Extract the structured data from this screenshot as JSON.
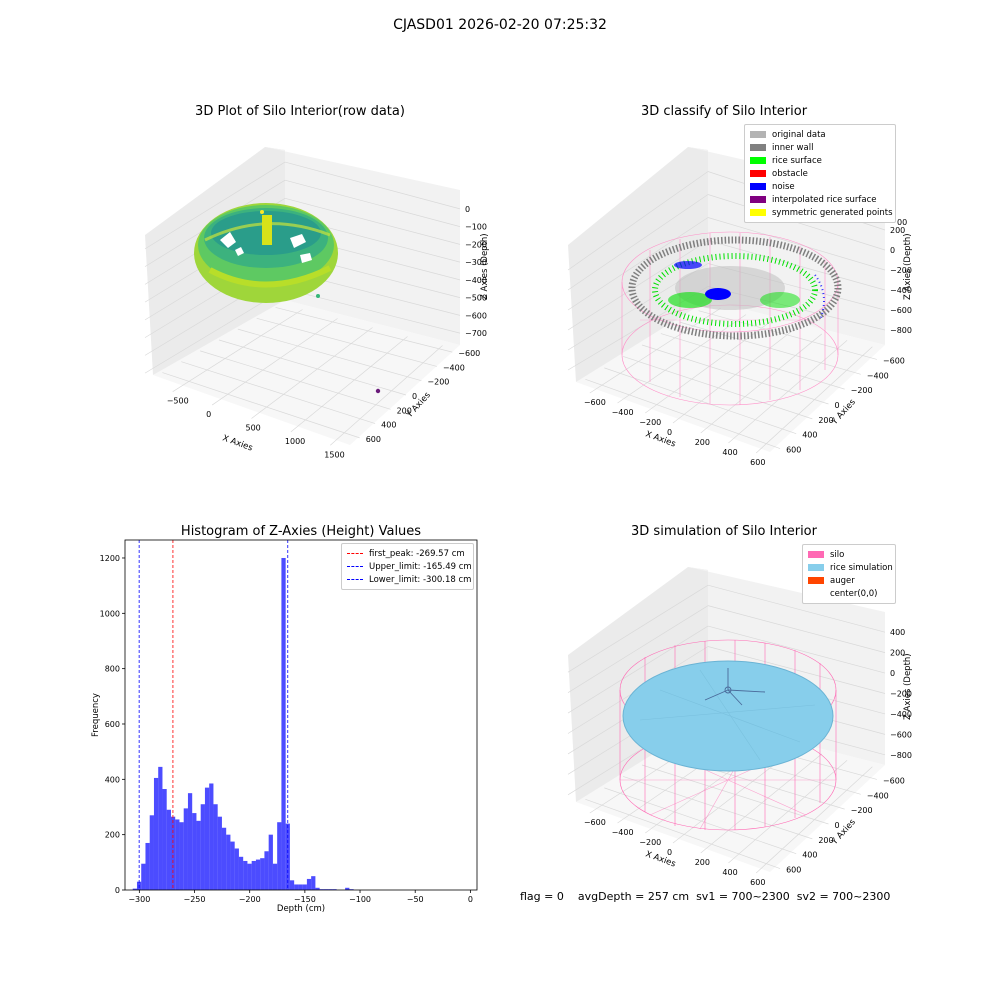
{
  "suptitle": "CJASD01 2026-02-20 07:25:32",
  "status_line": {
    "flag": "flag = 0",
    "avg_depth": "avgDepth = 257 cm",
    "sv1": "sv1 = 700~2300",
    "sv2": "sv2 = 700~2300"
  },
  "chart_data": [
    {
      "type": "scatter",
      "title": "3D Plot of Silo Interior(row data)",
      "xlabel": "X Axies",
      "ylabel": "Y Axies",
      "zlabel": "Z Axies (Depth)",
      "x_ticks": [
        "−500",
        "0",
        "500",
        "1000",
        "1500"
      ],
      "y_ticks": [
        "600",
        "400",
        "200",
        "0",
        "−200",
        "−400",
        "−600"
      ],
      "z_ticks": [
        "0",
        "−100",
        "−200",
        "−300",
        "−400",
        "−500",
        "−600",
        "−700"
      ],
      "colormap": "viridis",
      "grid": true
    },
    {
      "type": "scatter",
      "title": "3D classify of Silo Interior",
      "xlabel": "X Axies",
      "ylabel": "Y Axies",
      "zlabel": "Z Axies (Depth)",
      "x_ticks": [
        "−600",
        "−400",
        "−200",
        "0",
        "200",
        "400",
        "600"
      ],
      "y_ticks": [
        "600",
        "400",
        "200",
        "0",
        "−200",
        "−400",
        "−600"
      ],
      "z_ticks": [
        "200",
        "0",
        "−200",
        "−400",
        "−600",
        "−800"
      ],
      "z_tick_partial": "00",
      "grid": true,
      "legend_position": "top-right",
      "legend": [
        {
          "label": "original data",
          "color": "#b3b3b3"
        },
        {
          "label": "inner wall",
          "color": "#808080"
        },
        {
          "label": "rice surface",
          "color": "#00ff00"
        },
        {
          "label": "obstacle",
          "color": "#ff0000"
        },
        {
          "label": "noise",
          "color": "#0000ff"
        },
        {
          "label": "interpolated rice surface",
          "color": "#800080"
        },
        {
          "label": "symmetric generated points",
          "color": "#ffff00"
        }
      ]
    },
    {
      "type": "bar",
      "title": "Histogram of Z-Axies (Height) Values",
      "xlabel": "Depth (cm)",
      "ylabel": "Frequency",
      "xlim": [
        -313,
        6
      ],
      "ylim": [
        0,
        1265
      ],
      "x_ticks": [
        -300,
        -250,
        -200,
        -150,
        -100,
        -50,
        0
      ],
      "x_tick_labels": [
        "−300",
        "−250",
        "−200",
        "−150",
        "−100",
        "−50",
        "0"
      ],
      "y_ticks": [
        0,
        200,
        400,
        600,
        800,
        1000,
        1200
      ],
      "bin_start": -306,
      "bin_width": 3.85,
      "values": [
        5,
        30,
        95,
        170,
        270,
        405,
        445,
        365,
        290,
        265,
        255,
        245,
        295,
        350,
        278,
        250,
        310,
        370,
        385,
        310,
        265,
        225,
        200,
        175,
        150,
        120,
        105,
        95,
        105,
        110,
        115,
        140,
        200,
        95,
        245,
        1200,
        240,
        35,
        20,
        20,
        20,
        40,
        50,
        8,
        3,
        3,
        3,
        3,
        0,
        0,
        8,
        3
      ],
      "bar_color": "#0000ff",
      "bar_alpha": 0.7,
      "grid": false,
      "legend_position": "top-right",
      "vlines": [
        {
          "label": "first_peak: -269.57 cm",
          "x": -269.57,
          "color": "#ff0000"
        },
        {
          "label": "Upper_limit: -165.49 cm",
          "x": -165.49,
          "color": "#0000ff"
        },
        {
          "label": "Lower_limit: -300.18 cm",
          "x": -300.18,
          "color": "#0000ff"
        }
      ]
    },
    {
      "type": "scatter",
      "title": "3D simulation of Silo Interior",
      "xlabel": "X Axies",
      "ylabel": "Y Axies",
      "zlabel": "Z Axies (Depth)",
      "x_ticks": [
        "−600",
        "−400",
        "−200",
        "0",
        "200",
        "400",
        "600"
      ],
      "y_ticks": [
        "600",
        "400",
        "200",
        "0",
        "−200",
        "−400",
        "−600"
      ],
      "z_ticks": [
        "400",
        "200",
        "0",
        "−200",
        "−400",
        "−600",
        "−800"
      ],
      "grid": true,
      "legend_position": "top-right",
      "legend": [
        {
          "label": "silo",
          "color": "#ff69b4"
        },
        {
          "label": "rice simulation",
          "color": "#87ceeb"
        },
        {
          "label": "auger",
          "color": "#ff4500"
        },
        {
          "label": "center(0,0)",
          "color": "#ffffff"
        }
      ]
    }
  ]
}
